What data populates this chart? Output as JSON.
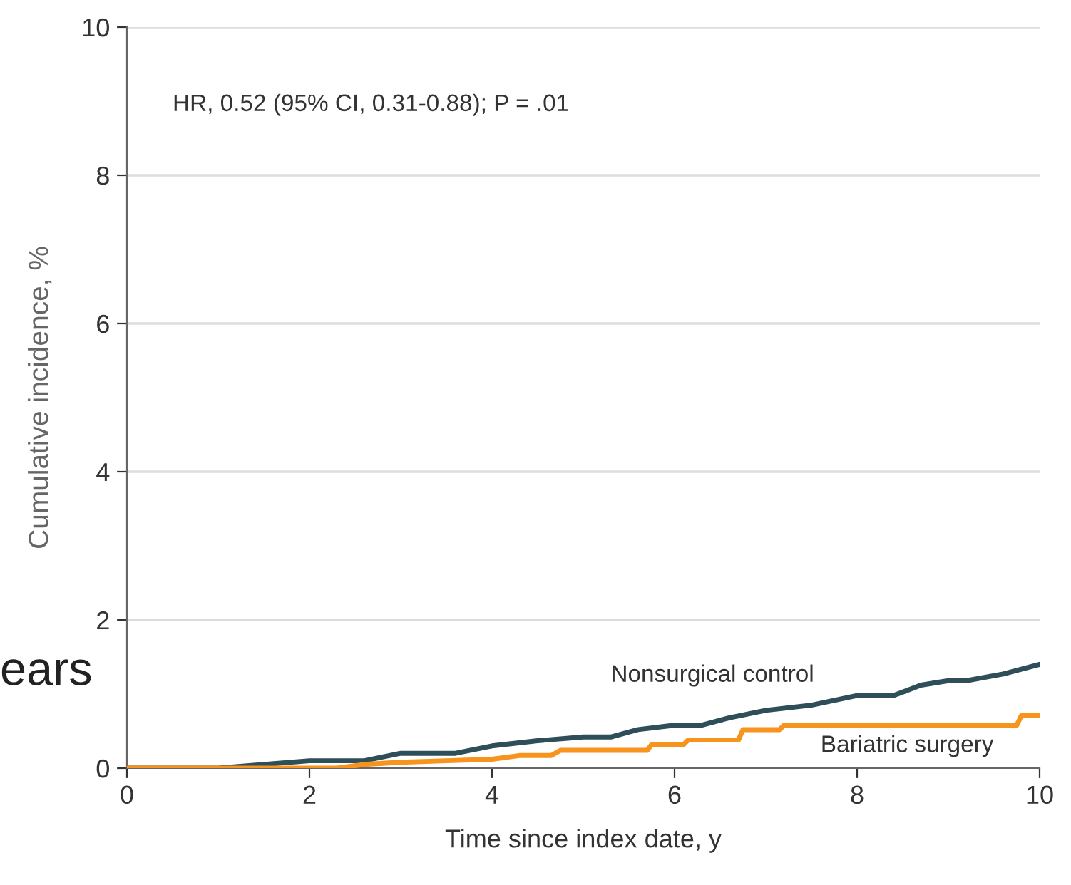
{
  "chart_data": {
    "type": "line",
    "xlabel": "Time since index date, y",
    "ylabel": "Cumulative incidence, %",
    "xlim": [
      0,
      10
    ],
    "ylim": [
      0,
      10
    ],
    "xticks": [
      0,
      2,
      4,
      6,
      8,
      10
    ],
    "yticks": [
      0,
      2,
      4,
      6,
      8,
      10
    ],
    "grid": "y",
    "legend": false,
    "marker": "none",
    "line_style": "solid",
    "series": [
      {
        "name": "Nonsurgical control",
        "color": "#2e4f5a",
        "x": [
          0,
          1,
          2,
          2.6,
          3,
          3.6,
          4,
          4.5,
          5,
          5.3,
          5.6,
          6,
          6.3,
          6.6,
          7,
          7.5,
          8,
          8.4,
          8.7,
          9,
          9.2,
          9.6,
          10
        ],
        "values": [
          0,
          0,
          0.1,
          0.1,
          0.2,
          0.2,
          0.3,
          0.37,
          0.42,
          0.42,
          0.52,
          0.58,
          0.58,
          0.68,
          0.78,
          0.85,
          0.98,
          0.98,
          1.12,
          1.18,
          1.18,
          1.27,
          1.4
        ]
      },
      {
        "name": "Bariatric surgery",
        "color": "#f7941d",
        "x": [
          0,
          2.3,
          2.6,
          3,
          3.5,
          4,
          4.3,
          4.65,
          4.75,
          5.7,
          5.75,
          6.1,
          6.15,
          6.7,
          6.75,
          7.15,
          7.2,
          9.75,
          9.8,
          10
        ],
        "values": [
          0,
          0,
          0.05,
          0.08,
          0.1,
          0.12,
          0.17,
          0.17,
          0.24,
          0.24,
          0.32,
          0.32,
          0.38,
          0.38,
          0.52,
          0.52,
          0.58,
          0.58,
          0.71,
          0.71
        ]
      }
    ],
    "annotations": [
      "HR, 0.52 (95% CI, 0.31-0.88); P = .01",
      "ears"
    ]
  }
}
